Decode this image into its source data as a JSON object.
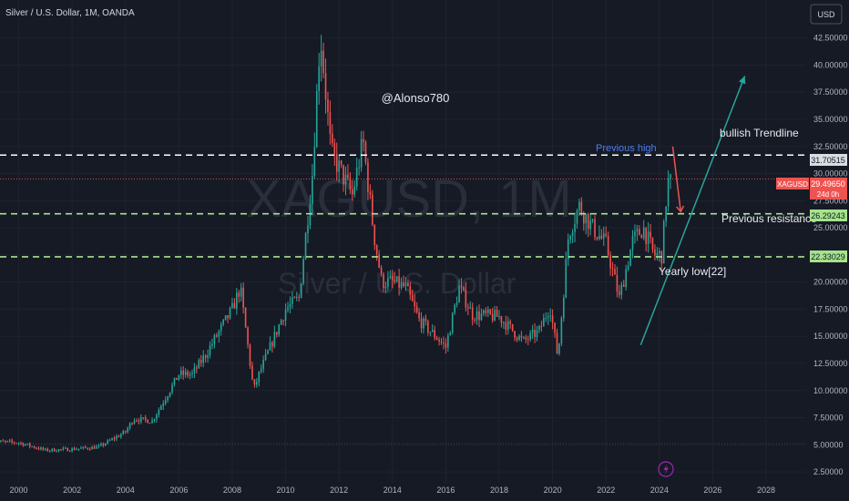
{
  "header": {
    "title": "Silver / U.S. Dollar, 1M, OANDA",
    "currency_button": "USD"
  },
  "watermark": {
    "symbol": "XAGUSD, 1M",
    "name": "Silver / U.S. Dollar"
  },
  "author": "@Alonso780",
  "annotations": {
    "previous_high": "Previous high",
    "bullish_trendline": "bullish Trendline",
    "previous_resistance": "Previous resistance",
    "yearly_low": "Yearly low[22]"
  },
  "price_badges": {
    "symbol": "XAGUSD",
    "current": "29.49650",
    "countdown": "24d 0h",
    "level_high": "31.70515",
    "level_resistance": "26.29243",
    "level_low": "22.33029"
  },
  "colors": {
    "background": "#161a25",
    "up": "#26a69a",
    "down": "#ef5350",
    "dashed_white": "#ffffff",
    "dashed_green": "#a5e38d",
    "trendline": "#26a69a",
    "arrow": "#ef5350",
    "highlight_blue": "#4b7cf0"
  },
  "icons": {
    "lightning": "lightning-icon"
  },
  "chart_data": {
    "type": "candlestick",
    "x_ticks": [
      "2000",
      "2002",
      "2004",
      "2006",
      "2008",
      "2010",
      "2012",
      "2014",
      "2016",
      "2018",
      "2020",
      "2022",
      "2024",
      "2026",
      "2028"
    ],
    "y_ticks": [
      "2.50000",
      "5.00000",
      "7.50000",
      "10.00000",
      "12.50000",
      "15.00000",
      "17.50000",
      "20.00000",
      "22.50000",
      "25.00000",
      "27.50000",
      "30.00000",
      "32.50000",
      "35.00000",
      "37.50000",
      "40.00000",
      "42.50000"
    ],
    "ylim": [
      1.5,
      46
    ],
    "xlim": [
      1999.3,
      2029.5
    ],
    "horizontal_levels": [
      {
        "value": 31.70515,
        "style": "dashed",
        "color": "white"
      },
      {
        "value": 26.29243,
        "style": "dashed",
        "color": "green"
      },
      {
        "value": 22.33029,
        "style": "dashed",
        "color": "green"
      }
    ],
    "current_price": 29.4965,
    "trendline": {
      "from": [
        2023.3,
        14.2
      ],
      "to": [
        2027.2,
        39
      ]
    },
    "arrow": {
      "from": [
        2024.5,
        32.5
      ],
      "to": [
        2024.8,
        26.5
      ]
    },
    "anchors": [
      [
        1999.0,
        5.3
      ],
      [
        2000.0,
        5.2
      ],
      [
        2001.0,
        4.5
      ],
      [
        2002.0,
        4.6
      ],
      [
        2003.0,
        4.8
      ],
      [
        2004.0,
        6.2
      ],
      [
        2004.3,
        7.4
      ],
      [
        2005.0,
        7.2
      ],
      [
        2006.0,
        11.5
      ],
      [
        2006.5,
        11.5
      ],
      [
        2007.0,
        13.3
      ],
      [
        2008.0,
        17.5
      ],
      [
        2008.3,
        19.5
      ],
      [
        2008.8,
        10.0
      ],
      [
        2009.0,
        11.5
      ],
      [
        2010.0,
        17.5
      ],
      [
        2010.5,
        18.5
      ],
      [
        2011.0,
        30.0
      ],
      [
        2011.3,
        43.0
      ],
      [
        2011.7,
        32.0
      ],
      [
        2012.0,
        30.5
      ],
      [
        2012.5,
        28.0
      ],
      [
        2012.9,
        33.0
      ],
      [
        2013.3,
        24.5
      ],
      [
        2013.6,
        20.0
      ],
      [
        2014.0,
        20.0
      ],
      [
        2014.5,
        19.5
      ],
      [
        2015.0,
        16.5
      ],
      [
        2015.7,
        14.8
      ],
      [
        2016.0,
        14.0
      ],
      [
        2016.5,
        19.5
      ],
      [
        2017.0,
        17.0
      ],
      [
        2018.0,
        16.8
      ],
      [
        2018.9,
        14.5
      ],
      [
        2019.5,
        15.5
      ],
      [
        2019.9,
        17.8
      ],
      [
        2020.2,
        13.0
      ],
      [
        2020.6,
        24.5
      ],
      [
        2021.0,
        27.0
      ],
      [
        2021.5,
        25.0
      ],
      [
        2022.0,
        23.5
      ],
      [
        2022.5,
        18.5
      ],
      [
        2023.0,
        23.8
      ],
      [
        2023.4,
        25.0
      ],
      [
        2023.8,
        22.5
      ],
      [
        2024.1,
        22.5
      ],
      [
        2024.3,
        29.2
      ]
    ]
  }
}
